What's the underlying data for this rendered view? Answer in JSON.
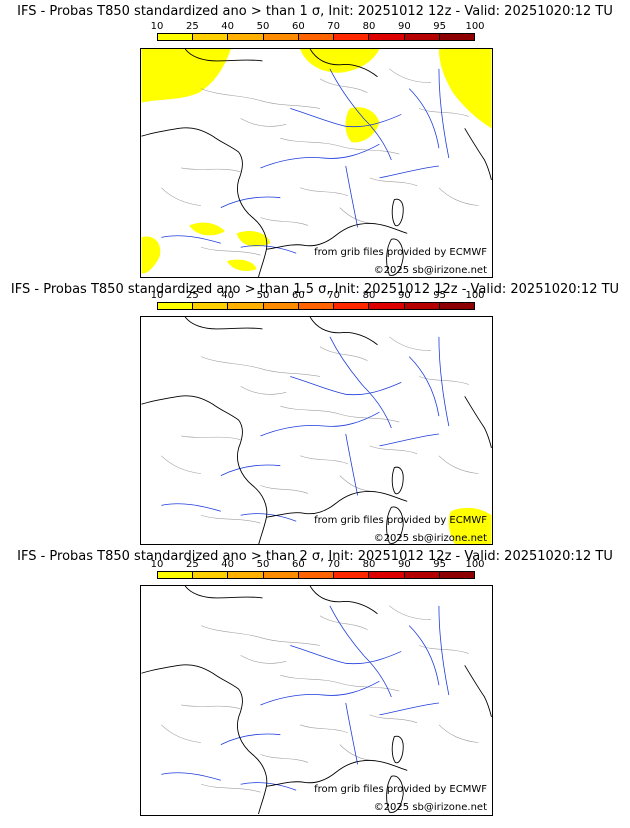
{
  "panels": [
    {
      "title": "IFS - Probas T850  standardized ano > than 1 σ, Init: 20251012 12z - Valid: 20251020:12 TU",
      "probability_coverage_pct": "10-25"
    },
    {
      "title": "IFS - Probas T850  standardized ano > than 1.5 σ, Init: 20251012 12z - Valid: 20251020:12 TU",
      "probability_coverage_pct": "10-25"
    },
    {
      "title": "IFS - Probas T850  standardized ano > than 2 σ, Init: 20251012 12z - Valid: 20251020:12 TU",
      "probability_coverage_pct": "none"
    }
  ],
  "colorbar": {
    "ticks": [
      "10",
      "25",
      "40",
      "50",
      "60",
      "70",
      "80",
      "90",
      "95",
      "100"
    ],
    "colors": [
      "#ffff00",
      "#ffd000",
      "#ffb000",
      "#ff8c00",
      "#ff6400",
      "#ff2800",
      "#dc0000",
      "#b40000",
      "#8c0000"
    ]
  },
  "credits": {
    "source": "from grib files provided by ECMWF",
    "copyright": "©2025 sb@irizone.net"
  },
  "colors": {
    "probability_fill": "#ffff00",
    "rivers": "#1e3cdc",
    "borders": "#a0a0a0",
    "coast": "#000000"
  }
}
